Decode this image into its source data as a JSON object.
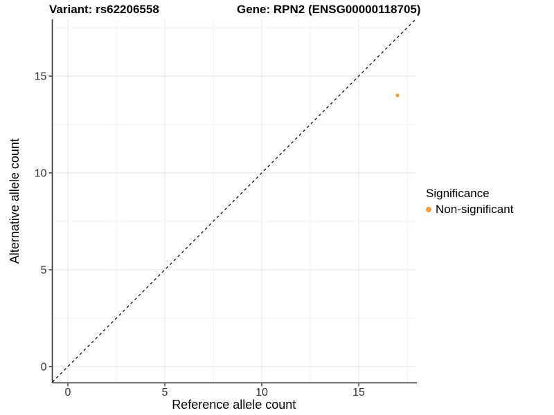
{
  "chart_data": {
    "type": "scatter",
    "title_left": "Variant: rs62206558",
    "title_right": "Gene: RPN2 (ENSG00000118705)",
    "xlabel": "Reference allele count",
    "ylabel": "Alternative allele count",
    "xticks": [
      0,
      5,
      10,
      15
    ],
    "yticks": [
      0,
      5,
      10,
      15
    ],
    "minor_ticks": [
      2.5,
      7.5,
      12.5,
      17.5
    ],
    "xlim": [
      -0.8,
      18
    ],
    "ylim": [
      -0.8,
      18
    ],
    "grid": "on",
    "diagonal_line": {
      "style": "dashed",
      "equation": "y = x",
      "color": "#000000"
    },
    "series": [
      {
        "name": "Non-significant",
        "color": "#F9A032",
        "points": [
          {
            "x": 17,
            "y": 14
          }
        ]
      }
    ],
    "legend": {
      "title": "Significance",
      "position": "right",
      "items": [
        {
          "label": "Non-significant",
          "color": "#F9A032"
        }
      ]
    },
    "colors": {
      "grid_major": "#e9e9e9",
      "grid_minor": "#f3f3f3",
      "axis_line": "#333333",
      "tick_text": "#303030",
      "title_text": "#000000"
    }
  }
}
